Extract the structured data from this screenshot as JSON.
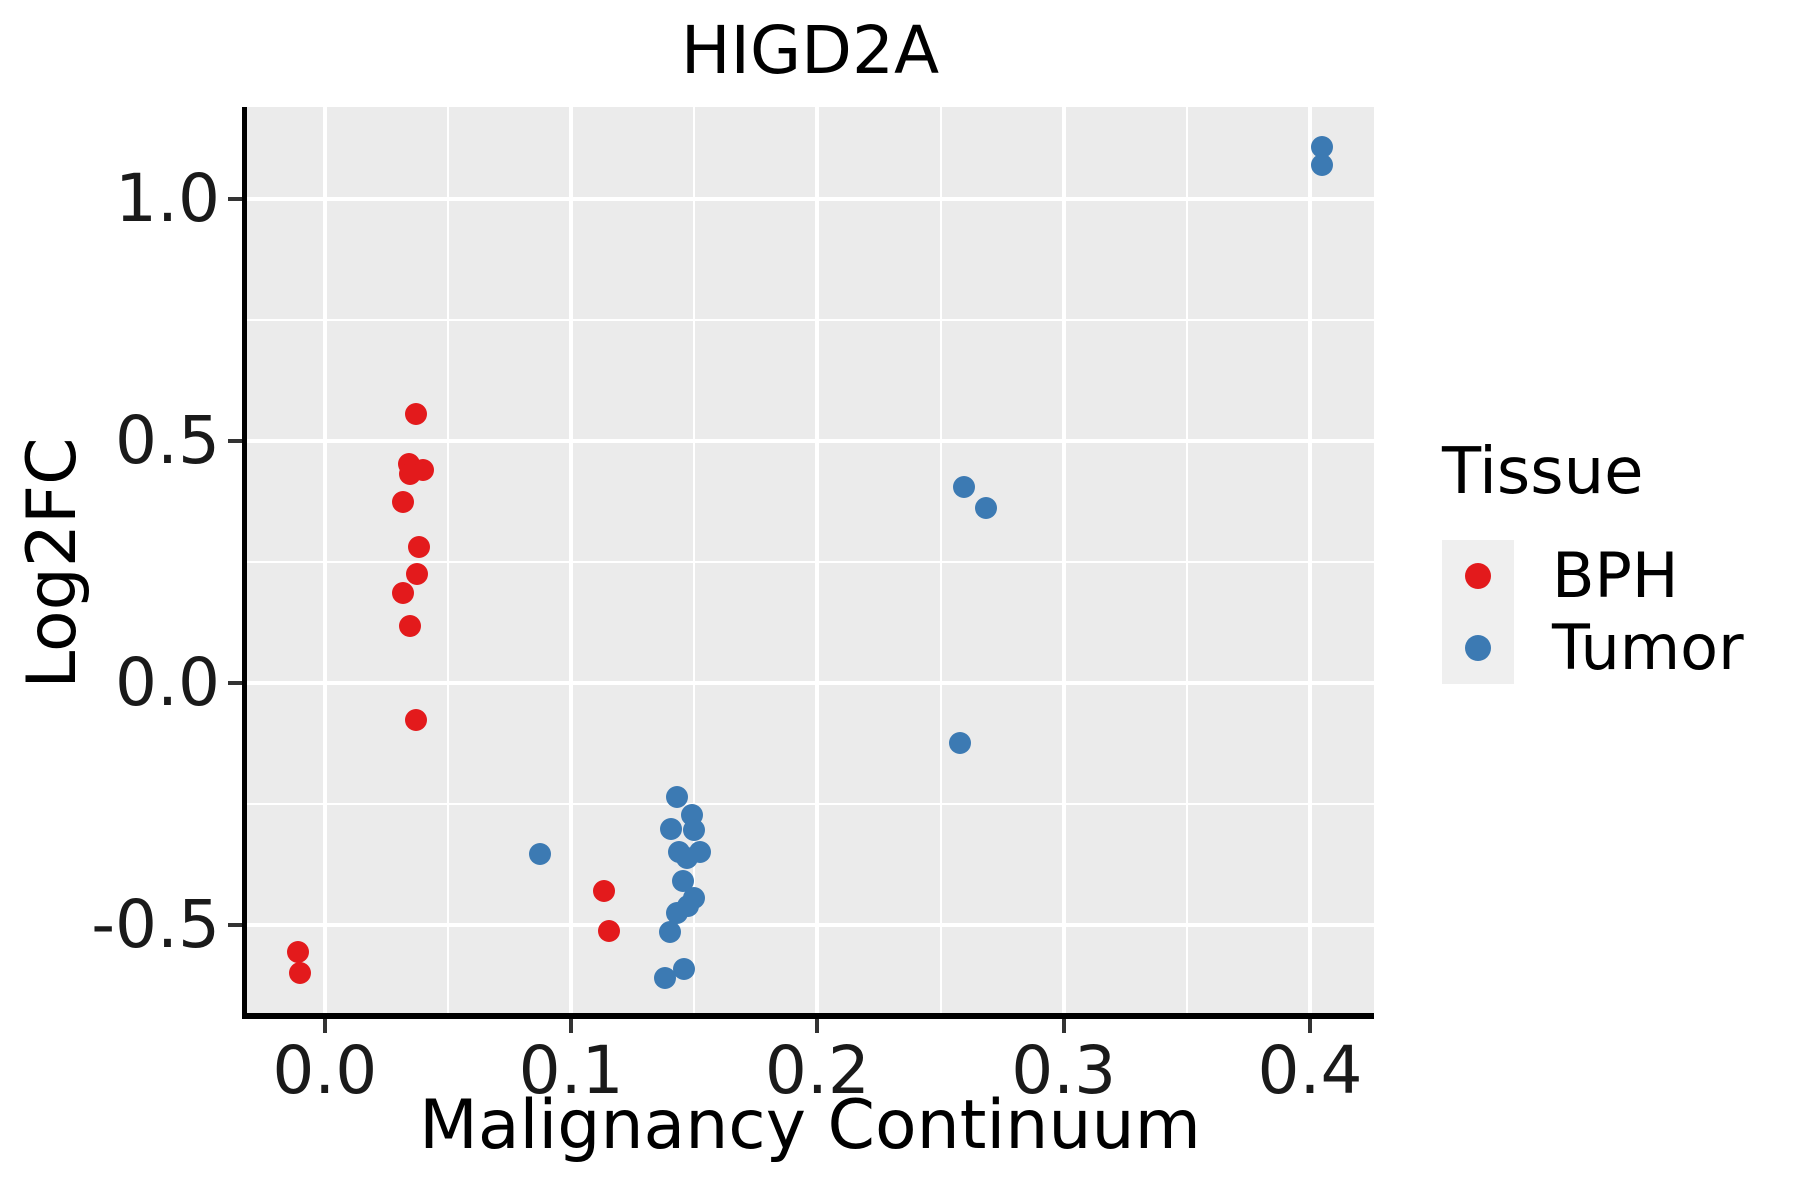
{
  "title": "HIGD2A",
  "axes": {
    "x": {
      "label": "Malignancy Continuum",
      "tick_labels": [
        "0.0",
        "0.1",
        "0.2",
        "0.3",
        "0.4"
      ],
      "tick_values": [
        0.0,
        0.1,
        0.2,
        0.3,
        0.4
      ]
    },
    "y": {
      "label": "Log2FC",
      "tick_labels": [
        "-0.5",
        "0.0",
        "0.5",
        "1.0"
      ],
      "tick_values": [
        -0.5,
        0.0,
        0.5,
        1.0
      ]
    }
  },
  "legend": {
    "title": "Tissue",
    "items": [
      {
        "label": "BPH",
        "color": "#E31A1C"
      },
      {
        "label": "Tumor",
        "color": "#3C7AB3"
      }
    ]
  },
  "colors": {
    "panel_bg": "#EBEBEB",
    "grid": "#FFFFFF",
    "axis_line": "#000000",
    "legend_key_bg": "#EFEFEF",
    "bph": "#E31A1C",
    "tumor": "#3C7AB3"
  },
  "chart_data": {
    "type": "scatter",
    "title": "HIGD2A",
    "xlabel": "Malignancy Continuum",
    "ylabel": "Log2FC",
    "xlim": [
      -0.032,
      0.426
    ],
    "ylim": [
      -0.69,
      1.19
    ],
    "x_major_ticks": [
      0.0,
      0.1,
      0.2,
      0.3,
      0.4
    ],
    "x_minor_ticks": [
      0.05,
      0.15,
      0.25,
      0.35
    ],
    "y_major_ticks": [
      -0.5,
      0.0,
      0.5,
      1.0
    ],
    "y_minor_ticks": [
      -0.25,
      0.25,
      0.75
    ],
    "grid": true,
    "legend_position": "right",
    "series": [
      {
        "name": "BPH",
        "color": "#E31A1C",
        "points": [
          [
            -0.011,
            -0.555
          ],
          [
            -0.01,
            -0.6
          ],
          [
            0.037,
            0.556
          ],
          [
            0.034,
            0.452
          ],
          [
            0.04,
            0.44
          ],
          [
            0.0345,
            0.431
          ],
          [
            0.0318,
            0.373
          ],
          [
            0.0384,
            0.28
          ],
          [
            0.0373,
            0.226
          ],
          [
            0.0316,
            0.186
          ],
          [
            0.0344,
            0.117
          ],
          [
            0.0369,
            -0.076
          ],
          [
            0.1135,
            -0.43
          ],
          [
            0.1152,
            -0.512
          ]
        ]
      },
      {
        "name": "Tumor",
        "color": "#3C7AB3",
        "points": [
          [
            0.0875,
            -0.354
          ],
          [
            0.1432,
            -0.235
          ],
          [
            0.1491,
            -0.272
          ],
          [
            0.1405,
            -0.302
          ],
          [
            0.1499,
            -0.303
          ],
          [
            0.1438,
            -0.35
          ],
          [
            0.1525,
            -0.35
          ],
          [
            0.147,
            -0.362
          ],
          [
            0.1455,
            -0.41
          ],
          [
            0.15,
            -0.445
          ],
          [
            0.1475,
            -0.461
          ],
          [
            0.1428,
            -0.475
          ],
          [
            0.1402,
            -0.514
          ],
          [
            0.1457,
            -0.591
          ],
          [
            0.138,
            -0.609
          ],
          [
            0.258,
            -0.124
          ],
          [
            0.2596,
            0.405
          ],
          [
            0.2686,
            0.362
          ],
          [
            0.4049,
            1.107
          ],
          [
            0.4049,
            1.07
          ]
        ]
      }
    ]
  }
}
